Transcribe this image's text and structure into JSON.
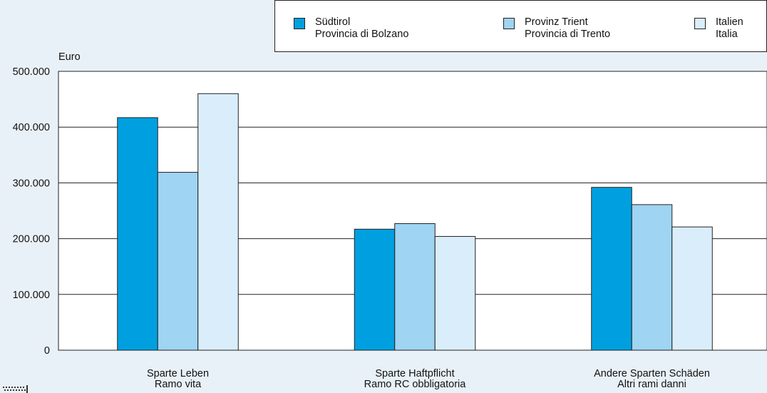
{
  "chart_data": {
    "type": "bar",
    "ylabel": "Euro",
    "ylim": [
      0,
      500000
    ],
    "yticks": [
      "0",
      "100.000",
      "200.000",
      "300.000",
      "400.000",
      "500.000"
    ],
    "grid": true,
    "legend_position": "top-right",
    "categories": [
      [
        "Sparte Leben",
        "Ramo vita"
      ],
      [
        "Sparte Haftpflicht",
        "Ramo RC obbligatoria"
      ],
      [
        "Andere Sparten Schäden",
        "Altri rami danni"
      ]
    ],
    "series": [
      {
        "name": [
          "Südtirol",
          "Provincia di Bolzano"
        ],
        "color": "#00a0e0",
        "values": [
          417000,
          217000,
          292000
        ]
      },
      {
        "name": [
          "Provinz Trient",
          "Provincia di Trento"
        ],
        "color": "#9fd4f2",
        "values": [
          319000,
          227000,
          261000
        ]
      },
      {
        "name": [
          "Italien",
          "Italia"
        ],
        "color": "#daedfa",
        "values": [
          460000,
          204000,
          221000
        ]
      }
    ]
  }
}
